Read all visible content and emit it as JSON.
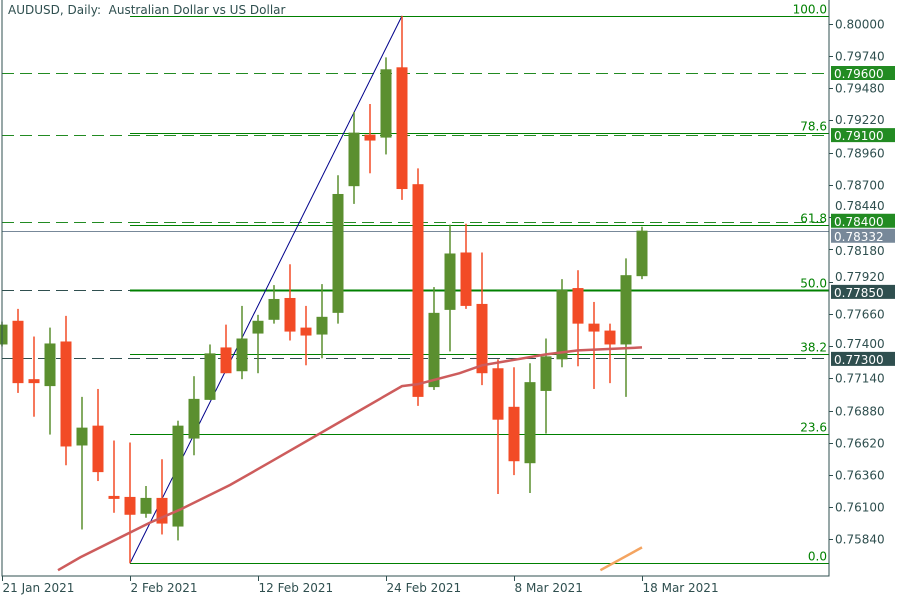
{
  "chart_data": {
    "type": "candlestick",
    "title": "AUDUSD, Daily:  Australian Dollar vs US Dollar",
    "ylim": [
      0.75545,
      0.80192
    ],
    "y_ticks": [
      "0.80000",
      "0.79740",
      "0.79480",
      "0.79220",
      "0.78960",
      "0.78700",
      "0.78440",
      "0.78180",
      "0.77920",
      "0.77660",
      "0.77400",
      "0.77140",
      "0.76880",
      "0.76620",
      "0.76360",
      "0.76100",
      "0.75840"
    ],
    "x_ticks": [
      {
        "index": 0,
        "label": "21 Jan 2021"
      },
      {
        "index": 8,
        "label": "2 Feb 2021"
      },
      {
        "index": 16,
        "label": "12 Feb 2021"
      },
      {
        "index": 24,
        "label": "24 Feb 2021"
      },
      {
        "index": 32,
        "label": "8 Mar 2021"
      },
      {
        "index": 40,
        "label": "18 Mar 2021"
      }
    ],
    "ohlc": [
      [
        0.77413,
        0.77597,
        0.77397,
        0.77573
      ],
      [
        0.77604,
        0.777,
        0.77022,
        0.77101
      ],
      [
        0.77133,
        0.77477,
        0.7683,
        0.77101
      ],
      [
        0.77077,
        0.77549,
        0.76686,
        0.77421
      ],
      [
        0.77437,
        0.77644,
        0.76439,
        0.7659
      ],
      [
        0.76598,
        0.7699,
        0.7592,
        0.76742
      ],
      [
        0.76758,
        0.77054,
        0.76311,
        0.76383
      ],
      [
        0.76191,
        0.76638,
        0.76055,
        0.76167
      ],
      [
        0.76183,
        0.76622,
        0.75648,
        0.76039
      ],
      [
        0.76047,
        0.76271,
        0.76015,
        0.76175
      ],
      [
        0.76175,
        0.76487,
        0.7588,
        0.75968
      ],
      [
        0.75944,
        0.76798,
        0.75832,
        0.76758
      ],
      [
        0.76654,
        0.77157,
        0.76519,
        0.76974
      ],
      [
        0.76966,
        0.77413,
        0.76966,
        0.77341
      ],
      [
        0.77389,
        0.77573,
        0.77181,
        0.77181
      ],
      [
        0.77197,
        0.77724,
        0.77133,
        0.77461
      ],
      [
        0.77501,
        0.77652,
        0.77181,
        0.77604
      ],
      [
        0.77612,
        0.77892,
        0.77581,
        0.7778
      ],
      [
        0.77788,
        0.7806,
        0.77445,
        0.77517
      ],
      [
        0.77549,
        0.77724,
        0.77245,
        0.77485
      ],
      [
        0.77493,
        0.779,
        0.77301,
        0.77636
      ],
      [
        0.77668,
        0.78778,
        0.77581,
        0.78627
      ],
      [
        0.7869,
        0.79289,
        0.78547,
        0.79122
      ],
      [
        0.79106,
        0.79353,
        0.78794,
        0.79058
      ],
      [
        0.79082,
        0.79729,
        0.78946,
        0.79633
      ],
      [
        0.79649,
        0.80064,
        0.78579,
        0.78667
      ],
      [
        0.78706,
        0.78834,
        0.76918,
        0.7699
      ],
      [
        0.77069,
        0.77876,
        0.77046,
        0.77668
      ],
      [
        0.77692,
        0.78379,
        0.77357,
        0.78147
      ],
      [
        0.78155,
        0.78387,
        0.777,
        0.77724
      ],
      [
        0.7774,
        0.78155,
        0.77085,
        0.77181
      ],
      [
        0.77221,
        0.77293,
        0.76207,
        0.76806
      ],
      [
        0.7691,
        0.77229,
        0.76359,
        0.76471
      ],
      [
        0.76455,
        0.77261,
        0.76215,
        0.77109
      ],
      [
        0.77038,
        0.77461,
        0.76694,
        0.77317
      ],
      [
        0.77293,
        0.7794,
        0.77229,
        0.77852
      ],
      [
        0.77868,
        0.78012,
        0.77237,
        0.77581
      ],
      [
        0.77581,
        0.77756,
        0.77054,
        0.77517
      ],
      [
        0.77525,
        0.77581,
        0.77101,
        0.77413
      ],
      [
        0.77413,
        0.78108,
        0.7699,
        0.77972
      ],
      [
        0.77964,
        0.78363,
        0.7794,
        0.78331
      ]
    ],
    "moving_averages": [
      {
        "color": "#cd5c5c",
        "points": [
          [
            3.5,
            0.75592
          ],
          [
            4.9,
            0.75696
          ],
          [
            9.25,
            0.75976
          ],
          [
            11.1,
            0.76079
          ],
          [
            14.25,
            0.76279
          ],
          [
            16.75,
            0.76463
          ],
          [
            21.9,
            0.76846
          ],
          [
            25,
            0.77077
          ],
          [
            26,
            0.77093
          ],
          [
            28.6,
            0.77181
          ],
          [
            30,
            0.77245
          ],
          [
            34,
            0.77333
          ],
          [
            36,
            0.77365
          ],
          [
            40,
            0.77389
          ]
        ]
      },
      {
        "color": "#f4a460",
        "points": [
          [
            37.4,
            0.75592
          ],
          [
            40,
            0.75776
          ]
        ]
      }
    ],
    "fibonacci": {
      "from": {
        "index": 8,
        "price": 0.75648
      },
      "to": {
        "index": 25,
        "price": 0.80064
      },
      "levels": [
        {
          "label": "0.0",
          "ratio": 0
        },
        {
          "label": "23.6",
          "ratio": 0.236
        },
        {
          "label": "38.2",
          "ratio": 0.382
        },
        {
          "label": "50.0",
          "ratio": 0.5
        },
        {
          "label": "61.8",
          "ratio": 0.618
        },
        {
          "label": "78.6",
          "ratio": 0.786
        },
        {
          "label": "100.0",
          "ratio": 1
        }
      ]
    },
    "horizontal_lines": [
      {
        "price": 0.796,
        "label": "0.79600",
        "style": "dashed",
        "color": "#228b22"
      },
      {
        "price": 0.791,
        "label": "0.79100",
        "style": "dashed",
        "color": "#228b22"
      },
      {
        "price": 0.784,
        "label": "0.78400",
        "style": "dashed",
        "color": "#228b22"
      },
      {
        "price": 0.7785,
        "label": "0.77850",
        "style": "dashed",
        "color": "#2f4f4f"
      },
      {
        "price": 0.773,
        "label": "0.77300",
        "style": "dashed",
        "color": "#2f4f4f"
      }
    ],
    "current_price": {
      "price": 0.78332,
      "label": "0.78332",
      "color": "#778899"
    },
    "colors": {
      "bull": "#5b8f2f",
      "bear": "#f24b26",
      "fib": "#008000",
      "trendline": "#00008b",
      "axis": "#2f4f4f"
    }
  }
}
